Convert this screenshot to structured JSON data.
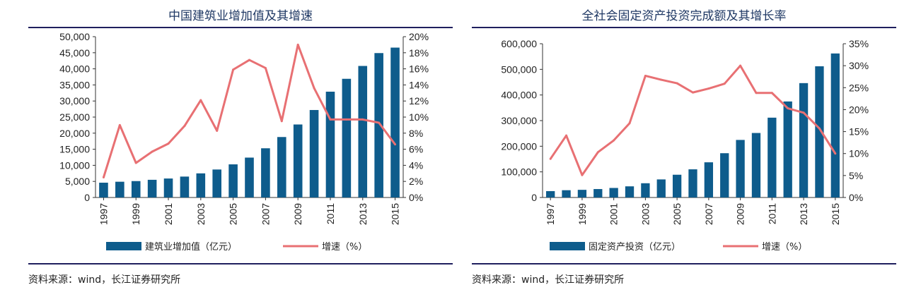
{
  "chart_data": [
    {
      "type": "bar+line",
      "title": "中国建筑业增加值及其增速",
      "source": "资料来源：wind，长江证券研究所",
      "categories": [
        "1997",
        "1998",
        "1999",
        "2000",
        "2001",
        "2002",
        "2003",
        "2004",
        "2005",
        "2006",
        "2007",
        "2008",
        "2009",
        "2010",
        "2011",
        "2012",
        "2013",
        "2014",
        "2015"
      ],
      "xtick_labels": [
        "1997",
        "1999",
        "2001",
        "2003",
        "2005",
        "2007",
        "2009",
        "2011",
        "2013",
        "2015"
      ],
      "left_ylim": [
        0,
        50000
      ],
      "left_yticks": [
        "0",
        "5,000",
        "10,000",
        "15,000",
        "20,000",
        "25,000",
        "30,000",
        "35,000",
        "40,000",
        "45,000",
        "50,000"
      ],
      "right_ylim": [
        0,
        20
      ],
      "right_yticks": [
        "0%",
        "2%",
        "4%",
        "6%",
        "8%",
        "10%",
        "12%",
        "14%",
        "16%",
        "18%",
        "20%"
      ],
      "series": [
        {
          "name": "建筑业增加值（亿元）",
          "type": "bar",
          "axis": "left",
          "values": [
            4600,
            4900,
            5100,
            5500,
            5900,
            6500,
            7500,
            8700,
            10300,
            12400,
            15300,
            18800,
            22700,
            27200,
            32900,
            36900,
            40900,
            44900,
            46600
          ]
        },
        {
          "name": "增速（%）",
          "type": "line",
          "axis": "right",
          "values": [
            2.5,
            9.0,
            4.3,
            5.7,
            6.7,
            8.9,
            12.1,
            8.3,
            15.9,
            17.1,
            16.1,
            9.5,
            19.0,
            13.6,
            9.7,
            9.7,
            9.7,
            9.3,
            6.6
          ]
        }
      ],
      "colors": {
        "bar": "#0e5c8c",
        "line": "#e87073"
      }
    },
    {
      "type": "bar+line",
      "title": "全社会固定资产投资完成额及其增长率",
      "source": "资料来源：wind，长江证券研究所",
      "categories": [
        "1997",
        "1998",
        "1999",
        "2000",
        "2001",
        "2002",
        "2003",
        "2004",
        "2005",
        "2006",
        "2007",
        "2008",
        "2009",
        "2010",
        "2011",
        "2012",
        "2013",
        "2014",
        "2015"
      ],
      "xtick_labels": [
        "1997",
        "1999",
        "2001",
        "2003",
        "2005",
        "2007",
        "2009",
        "2011",
        "2013",
        "2015"
      ],
      "left_ylim": [
        0,
        600000
      ],
      "left_yticks": [
        "0",
        "100,000",
        "200,000",
        "300,000",
        "400,000",
        "500,000",
        "600,000"
      ],
      "right_ylim": [
        0,
        35
      ],
      "right_yticks": [
        "0%",
        "5%",
        "10%",
        "15%",
        "20%",
        "25%",
        "30%",
        "35%"
      ],
      "series": [
        {
          "name": "固定资产投资（亿元）",
          "type": "bar",
          "axis": "left",
          "values": [
            24900,
            28400,
            29900,
            32900,
            37200,
            43500,
            55600,
            70500,
            88800,
            109900,
            137300,
            172800,
            224600,
            251700,
            311500,
            374700,
            446300,
            512000,
            561999
          ]
        },
        {
          "name": "增速（%）",
          "type": "line",
          "axis": "right",
          "values": [
            8.8,
            14.1,
            5.1,
            10.3,
            13.0,
            16.9,
            27.7,
            26.8,
            26.0,
            23.9,
            24.8,
            25.9,
            30.0,
            23.8,
            23.8,
            20.3,
            19.3,
            15.7,
            10.0
          ]
        }
      ],
      "colors": {
        "bar": "#0e5c8c",
        "line": "#e87073"
      }
    }
  ]
}
